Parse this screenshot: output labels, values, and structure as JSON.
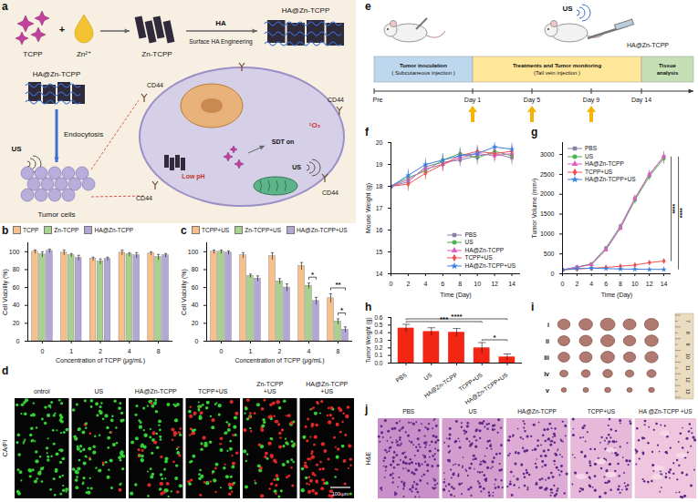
{
  "chart_data": [
    {
      "panel_label": "b",
      "type": "bar",
      "x_label": "Concentration of TCPP (μg/mL)",
      "y_label": "Cell Viability (%)",
      "categories": [
        "0",
        "1",
        "2",
        "4",
        "8"
      ],
      "ylim": [
        0,
        110
      ],
      "yticks": [
        0,
        20,
        40,
        60,
        80,
        100
      ],
      "legend": "top",
      "series": [
        {
          "name": "TCPP",
          "color": "#f7c08a",
          "values": [
            100,
            99,
            92,
            99,
            98
          ],
          "errors": [
            2,
            3,
            2,
            3,
            2
          ]
        },
        {
          "name": "Zn-TCPP",
          "color": "#a9d18e",
          "values": [
            97,
            96,
            89,
            97,
            94
          ],
          "errors": [
            3,
            2,
            3,
            2,
            3
          ]
        },
        {
          "name": "HA@Zn-TCPP",
          "color": "#b4a7d6",
          "values": [
            101,
            93,
            92,
            96,
            96
          ],
          "errors": [
            2,
            3,
            2,
            3,
            2
          ]
        }
      ]
    },
    {
      "panel_label": "c",
      "type": "bar",
      "x_label": "Concentration of TCPP (μg/mL)",
      "y_label": "Cell Viability (%)",
      "categories": [
        "0",
        "1",
        "2",
        "4",
        "8"
      ],
      "ylim": [
        0,
        110
      ],
      "yticks": [
        0,
        20,
        40,
        60,
        80,
        100
      ],
      "legend": "top",
      "series": [
        {
          "name": "TCPP+US",
          "color": "#f7c08a",
          "values": [
            100,
            96,
            95,
            84,
            48
          ],
          "errors": [
            2,
            3,
            4,
            4,
            5
          ]
        },
        {
          "name": "Zn-TCPP+US",
          "color": "#a9d18e",
          "values": [
            100,
            73,
            67,
            62,
            22
          ],
          "errors": [
            2,
            2,
            3,
            3,
            3
          ]
        },
        {
          "name": "HA@Zn-TCPP+US",
          "color": "#b4a7d6",
          "values": [
            99,
            70,
            60,
            45,
            13
          ],
          "errors": [
            2,
            3,
            4,
            4,
            3
          ]
        }
      ],
      "annotations": [
        {
          "category": "4",
          "series": [
            "Zn-TCPP+US",
            "HA@Zn-TCPP+US"
          ],
          "label": "*"
        },
        {
          "category": "8",
          "series": [
            "Zn-TCPP+US",
            "HA@Zn-TCPP+US"
          ],
          "label": "*"
        },
        {
          "category": "8",
          "series": [
            "TCPP+US",
            "HA@Zn-TCPP+US"
          ],
          "label": "**"
        }
      ]
    },
    {
      "panel_label": "f",
      "type": "line",
      "x_label": "Time (Day)",
      "y_label": "Mouse Weight (g)",
      "x": [
        0,
        2,
        4,
        6,
        8,
        10,
        12,
        14
      ],
      "xlim": [
        0,
        15
      ],
      "xticks": [
        0,
        2,
        4,
        6,
        8,
        10,
        12,
        14
      ],
      "ylim": [
        14,
        20
      ],
      "yticks": [
        14,
        15,
        16,
        17,
        18,
        19,
        20
      ],
      "legend": "bottom-right",
      "series": [
        {
          "name": "PBS",
          "color": "#8a7fa6",
          "marker": "square",
          "values": [
            18.0,
            18.2,
            18.9,
            19.1,
            19.2,
            19.4,
            19.5,
            19.3
          ],
          "errors": [
            0.2,
            0.3,
            0.3,
            0.3,
            0.3,
            0.3,
            0.3,
            0.3
          ]
        },
        {
          "name": "US",
          "color": "#4caf50",
          "marker": "circle",
          "values": [
            18.0,
            18.4,
            18.7,
            19.2,
            19.5,
            19.3,
            19.6,
            19.4
          ],
          "errors": [
            0.2,
            0.3,
            0.3,
            0.3,
            0.3,
            0.3,
            0.3,
            0.3
          ]
        },
        {
          "name": "HA@Zn-TCPP",
          "color": "#e05fc4",
          "marker": "triangle",
          "values": [
            18.0,
            18.3,
            18.8,
            19.0,
            19.3,
            19.5,
            19.4,
            19.5
          ],
          "errors": [
            0.2,
            0.3,
            0.3,
            0.3,
            0.3,
            0.3,
            0.3,
            0.3
          ]
        },
        {
          "name": "TCPP+US",
          "color": "#f05050",
          "marker": "diamond",
          "values": [
            18.0,
            18.1,
            18.6,
            19.0,
            19.4,
            19.6,
            19.5,
            19.6
          ],
          "errors": [
            0.2,
            0.3,
            0.3,
            0.3,
            0.3,
            0.3,
            0.3,
            0.3
          ]
        },
        {
          "name": "HA@Zn-TCPP+US",
          "color": "#3d7fe0",
          "marker": "star",
          "values": [
            18.0,
            18.5,
            19.0,
            19.2,
            19.4,
            19.5,
            19.8,
            19.7
          ],
          "errors": [
            0.2,
            0.3,
            0.3,
            0.3,
            0.3,
            0.3,
            0.3,
            0.3
          ]
        }
      ]
    },
    {
      "panel_label": "g",
      "type": "line",
      "x_label": "Time (Day)",
      "y_label": "Tumor Volume (mm³)",
      "x": [
        0,
        2,
        4,
        6,
        8,
        10,
        12,
        14
      ],
      "xlim": [
        0,
        15
      ],
      "xticks": [
        0,
        2,
        4,
        6,
        8,
        10,
        12,
        14
      ],
      "ylim": [
        0,
        3300
      ],
      "yticks": [
        0,
        500,
        1000,
        1500,
        2000,
        2500,
        3000
      ],
      "legend": "top-left",
      "series": [
        {
          "name": "PBS",
          "color": "#8a7fa6",
          "marker": "square",
          "values": [
            100,
            170,
            250,
            650,
            1200,
            1900,
            2500,
            2950
          ],
          "errors": [
            10,
            20,
            30,
            50,
            70,
            90,
            110,
            140
          ]
        },
        {
          "name": "US",
          "color": "#4caf50",
          "marker": "circle",
          "values": [
            100,
            160,
            240,
            620,
            1150,
            1850,
            2450,
            2900
          ],
          "errors": [
            10,
            20,
            30,
            50,
            70,
            90,
            100,
            130
          ]
        },
        {
          "name": "HA@Zn-TCPP",
          "color": "#e05fc4",
          "marker": "triangle",
          "values": [
            100,
            165,
            230,
            600,
            1150,
            1900,
            2500,
            2950
          ],
          "errors": [
            10,
            20,
            30,
            50,
            70,
            90,
            110,
            130
          ]
        },
        {
          "name": "TCPP+US",
          "color": "#f05050",
          "marker": "diamond",
          "values": [
            100,
            120,
            140,
            160,
            190,
            220,
            280,
            320
          ],
          "errors": [
            10,
            15,
            15,
            20,
            20,
            25,
            30,
            35
          ]
        },
        {
          "name": "HA@Zn-TCPP+US",
          "color": "#3d7fe0",
          "marker": "star",
          "values": [
            100,
            130,
            140,
            130,
            120,
            115,
            110,
            110
          ],
          "errors": [
            10,
            15,
            15,
            15,
            15,
            15,
            15,
            40
          ]
        }
      ],
      "annotations": [
        {
          "x": 14,
          "series": [
            "PBS",
            "TCPP+US"
          ],
          "label": "****"
        },
        {
          "x": 14,
          "series": [
            "PBS",
            "HA@Zn-TCPP+US"
          ],
          "label": "****"
        }
      ]
    },
    {
      "panel_label": "h",
      "type": "bar",
      "y_label": "Tumor Weight (g)",
      "color": "#f22613",
      "categories": [
        "PBS",
        "US",
        "HA@Zn-TCPP",
        "TCPP+US",
        "HA@Zn-TCPP+US"
      ],
      "values": [
        0.46,
        0.415,
        0.405,
        0.2,
        0.08
      ],
      "errors": [
        0.05,
        0.05,
        0.05,
        0.07,
        0.04
      ],
      "ylim": [
        0,
        0.6
      ],
      "yticks": [
        {
          "value": 0,
          "label": "0.0"
        },
        {
          "value": 0.1,
          "label": "0.1"
        },
        {
          "value": 0.2,
          "label": "0.2"
        },
        {
          "value": 0.3,
          "label": "0.3"
        },
        {
          "value": 0.4,
          "label": "0.4"
        },
        {
          "value": 0.5,
          "label": "0.5"
        },
        {
          "value": 0.6,
          "label": "0.6"
        }
      ],
      "annotations": [
        {
          "between": [
            "PBS",
            "HA@Zn-TCPP+US"
          ],
          "label": "****"
        },
        {
          "between": [
            "PBS",
            "TCPP+US"
          ],
          "label": "***"
        },
        {
          "between": [
            "TCPP+US",
            "HA@Zn-TCPP+US"
          ],
          "label": "*"
        }
      ]
    }
  ],
  "schematic": {
    "panel_label": "a",
    "labels": {
      "tcpp": "TCPP",
      "plus": "+",
      "zn": "Zn²⁺",
      "zn_tcpp": "Zn-TCPP",
      "ha": "HA",
      "surface": "Surface HA Engineering",
      "ha_zn_tcpp": "HA@Zn-TCPP",
      "cd44": "CD44",
      "endocytosis": "Endocytosis",
      "us": "US",
      "tumor_cells": "Tumor cells",
      "low_ph": "Low pH",
      "sdt_on": "SDT on",
      "singlet_oxygen": "¹O₂"
    }
  },
  "staining": {
    "panel_label": "d",
    "stain": "CA/PI",
    "scale_bar": "100 μm",
    "columns": [
      "ontrol",
      "US",
      "HA@Zn-TCPP",
      "TCPP+US",
      "Zn-TCPP +US",
      "HA@Zn-TCPP +US"
    ]
  },
  "timeline": {
    "panel_label": "e",
    "phases": [
      {
        "title": "Tumor inoculation",
        "subtitle": "( Subcutaneous injection )"
      },
      {
        "title": "Treatments and Tumor monitoring",
        "subtitle": "(Tail vein injection )"
      },
      {
        "title": "Tissue analysis"
      }
    ],
    "ticks": [
      "Pre",
      "Day 1",
      "Day 5",
      "Day 9",
      "Day 14"
    ],
    "dosing_days": [
      "Day 1",
      "Day 5",
      "Day 9"
    ],
    "us": "US",
    "agent": "HA@Zn-TCPP"
  },
  "tumor_photos": {
    "panel_label": "i",
    "rows": [
      "i",
      "ii",
      "iii",
      "iv",
      "v"
    ],
    "ruler": [
      "7",
      "8",
      "9",
      "10",
      "11",
      "12",
      "13"
    ]
  },
  "histology": {
    "panel_label": "j",
    "stain": "H&E",
    "columns": [
      "PBS",
      "US",
      "HA@Zn-TCPP",
      "TCPP+US",
      "HA @Zn-TCPP +US"
    ]
  }
}
